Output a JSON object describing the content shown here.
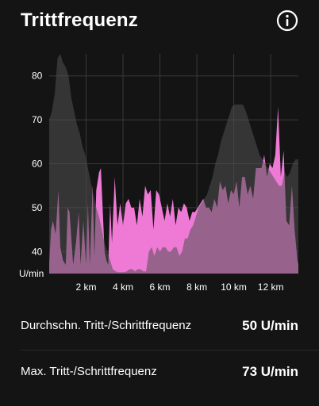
{
  "header": {
    "title": "Trittfrequenz",
    "info_icon": "info-circle-icon"
  },
  "colors": {
    "background": "#141414",
    "series_a": "#ee7ad6",
    "series_b": "#505050",
    "overlap": "#a97aa3",
    "grid": "#3a3a3a"
  },
  "chart_data": {
    "type": "area",
    "xlabel": "",
    "ylabel": "U/min",
    "x_unit": "km",
    "xlim": [
      0,
      13.5
    ],
    "ylim": [
      35,
      85
    ],
    "x_ticks": [
      "2 km",
      "4 km",
      "6 km",
      "8 km",
      "10 km",
      "12 km"
    ],
    "y_ticks": [
      "40",
      "50",
      "60",
      "70",
      "80"
    ],
    "y_unit_label": "U/min",
    "grid": true,
    "series": [
      {
        "color": "#ee7ad6",
        "x": [
          0,
          0.1,
          0.2,
          0.35,
          0.5,
          0.6,
          0.75,
          0.9,
          1.0,
          1.1,
          1.3,
          1.45,
          1.6,
          1.7,
          1.85,
          2.0,
          2.1,
          2.2,
          2.35,
          2.45,
          2.55,
          2.7,
          2.8,
          3.0,
          3.1,
          3.2,
          3.3,
          3.4,
          3.55,
          3.7,
          3.85,
          4.0,
          4.15,
          4.3,
          4.45,
          4.6,
          4.75,
          4.9,
          5.05,
          5.2,
          5.35,
          5.5,
          5.65,
          5.8,
          5.95,
          6.1,
          6.25,
          6.4,
          6.55,
          6.7,
          6.85,
          7.0,
          7.15,
          7.3,
          7.45,
          7.6,
          7.75,
          7.9,
          8.05,
          8.2,
          8.35,
          8.5,
          8.65,
          8.8,
          8.95,
          9.1,
          9.25,
          9.4,
          9.55,
          9.7,
          9.85,
          10.0,
          10.15,
          10.3,
          10.45,
          10.6,
          10.75,
          10.9,
          11.05,
          11.2,
          11.35,
          11.5,
          11.65,
          11.8,
          11.95,
          12.1,
          12.25,
          12.4,
          12.55,
          12.7,
          12.85,
          13.0,
          13.15,
          13.3,
          13.45,
          13.5
        ],
        "y": [
          37,
          45,
          47,
          44,
          54,
          41,
          38,
          37,
          50,
          49,
          37,
          42,
          49,
          37,
          47,
          37,
          51,
          37,
          55,
          39,
          54,
          58,
          59,
          40,
          38,
          37,
          51,
          42,
          57,
          46,
          51,
          46,
          51,
          52,
          50,
          50,
          46,
          52,
          48,
          55,
          53,
          54,
          45,
          54,
          53,
          50,
          47,
          51,
          48,
          52,
          46,
          50,
          49,
          51,
          50,
          47,
          49,
          49,
          50,
          51,
          52,
          50,
          50,
          49,
          52,
          50,
          56,
          54,
          55,
          51,
          54,
          53,
          56,
          50,
          57,
          57,
          53,
          55,
          52,
          59,
          59,
          59,
          62,
          57,
          60,
          59,
          62,
          73,
          57,
          63,
          47,
          46,
          55,
          45,
          38,
          37
        ]
      },
      {
        "color": "#505050",
        "x": [
          0,
          0.15,
          0.3,
          0.45,
          0.6,
          0.75,
          0.9,
          1.05,
          1.2,
          1.35,
          1.5,
          1.65,
          1.8,
          1.95,
          2.1,
          2.25,
          2.4,
          2.55,
          2.7,
          2.85,
          3.0,
          3.15,
          3.3,
          3.45,
          3.6,
          3.75,
          3.9,
          4.05,
          4.2,
          4.35,
          4.5,
          4.65,
          4.8,
          4.95,
          5.1,
          5.25,
          5.4,
          5.55,
          5.7,
          5.85,
          6.0,
          6.15,
          6.3,
          6.45,
          6.6,
          6.75,
          6.9,
          7.05,
          7.2,
          7.35,
          7.5,
          7.65,
          7.8,
          7.95,
          8.1,
          8.25,
          8.4,
          8.55,
          8.7,
          8.85,
          9.0,
          9.15,
          9.3,
          9.45,
          9.6,
          9.75,
          9.9,
          10.05,
          10.2,
          10.35,
          10.5,
          10.65,
          10.8,
          10.95,
          11.1,
          11.25,
          11.4,
          11.55,
          11.7,
          11.85,
          12.0,
          12.15,
          12.3,
          12.45,
          12.6,
          12.75,
          12.9,
          13.05,
          13.2,
          13.35,
          13.5
        ],
        "y": [
          70,
          72,
          76,
          84,
          85,
          83,
          82,
          80,
          75,
          72,
          69,
          67,
          64,
          62,
          59,
          56,
          53,
          50,
          48,
          45,
          42,
          40,
          38,
          36,
          35.5,
          35.3,
          35.3,
          35.3,
          35.5,
          36,
          36,
          35.5,
          36,
          36,
          35.5,
          35.5,
          40,
          41,
          39,
          41,
          40,
          41,
          41,
          40,
          40,
          41,
          41,
          39,
          40,
          43,
          43,
          45,
          46,
          48,
          50,
          51,
          52,
          53,
          55,
          57,
          60,
          62,
          65,
          67,
          69,
          71,
          73,
          73.5,
          73.5,
          73.5,
          73.5,
          72,
          70,
          68,
          66,
          64,
          62,
          61,
          60,
          59,
          58,
          57,
          56,
          55,
          55,
          58,
          57,
          58,
          60,
          61,
          61
        ]
      }
    ]
  },
  "stats": [
    {
      "label": "Durchschn. Tritt-/Schrittfrequenz",
      "value": "50 U/min"
    },
    {
      "label": "Max. Tritt-/Schrittfrequenz",
      "value": "73 U/min"
    }
  ]
}
